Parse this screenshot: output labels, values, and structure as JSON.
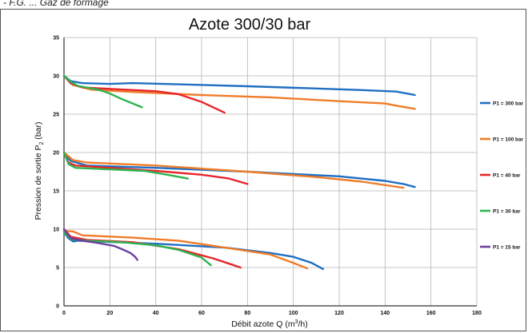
{
  "caption": "- F.G. ... Gaz de formage",
  "chart_data": {
    "type": "line",
    "title": "Azote 300/30 bar",
    "xlabel_main": "Débit azote Q (m",
    "xlabel_sup": "3",
    "xlabel_end": "/h)",
    "ylabel_main": "Pression de sortie P",
    "ylabel_sub": "2",
    "ylabel_end": " (bar)",
    "xlim": [
      0,
      180
    ],
    "ylim": [
      0,
      35
    ],
    "xticks": [
      0,
      20,
      40,
      60,
      80,
      100,
      120,
      140,
      160,
      180
    ],
    "yticks": [
      0,
      5,
      10,
      15,
      20,
      25,
      30,
      35
    ],
    "grid": true,
    "legend_position": "right",
    "series": [
      {
        "name": "P1 = 300 bar",
        "color": "#1f6fc2",
        "lines": [
          [
            [
              0,
              30.0
            ],
            [
              3,
              29.3
            ],
            [
              8,
              29.05
            ],
            [
              20,
              28.95
            ],
            [
              30,
              29.05
            ],
            [
              50,
              28.9
            ],
            [
              80,
              28.65
            ],
            [
              110,
              28.35
            ],
            [
              130,
              28.15
            ],
            [
              145,
              27.95
            ],
            [
              153,
              27.5
            ]
          ],
          [
            [
              0,
              20.0
            ],
            [
              3,
              18.9
            ],
            [
              10,
              18.3
            ],
            [
              40,
              18.0
            ],
            [
              80,
              17.5
            ],
            [
              120,
              16.9
            ],
            [
              140,
              16.3
            ],
            [
              148,
              15.9
            ],
            [
              153,
              15.5
            ]
          ],
          [
            [
              0,
              9.6
            ],
            [
              2,
              8.8
            ],
            [
              4,
              8.4
            ],
            [
              6,
              8.5
            ],
            [
              15,
              8.4
            ],
            [
              40,
              8.1
            ],
            [
              70,
              7.6
            ],
            [
              90,
              6.9
            ],
            [
              100,
              6.4
            ],
            [
              108,
              5.6
            ],
            [
              113,
              4.8
            ]
          ]
        ]
      },
      {
        "name": "P1 = 100 bar",
        "color": "#f07c28",
        "lines": [
          [
            [
              0,
              30.0
            ],
            [
              4,
              28.8
            ],
            [
              12,
              28.2
            ],
            [
              30,
              27.9
            ],
            [
              60,
              27.5
            ],
            [
              90,
              27.2
            ],
            [
              120,
              26.7
            ],
            [
              140,
              26.4
            ],
            [
              147,
              26.0
            ],
            [
              153,
              25.7
            ]
          ],
          [
            [
              0,
              20.0
            ],
            [
              4,
              19.0
            ],
            [
              10,
              18.7
            ],
            [
              40,
              18.3
            ],
            [
              80,
              17.5
            ],
            [
              110,
              16.8
            ],
            [
              130,
              16.2
            ],
            [
              148,
              15.4
            ]
          ],
          [
            [
              0,
              9.8
            ],
            [
              4,
              9.7
            ],
            [
              8,
              9.2
            ],
            [
              30,
              8.9
            ],
            [
              50,
              8.5
            ],
            [
              70,
              7.6
            ],
            [
              90,
              6.7
            ],
            [
              100,
              5.6
            ],
            [
              106,
              4.9
            ]
          ]
        ]
      },
      {
        "name": "P1 = 40 bar",
        "color": "#e5262b",
        "lines": [
          [
            [
              0,
              30.0
            ],
            [
              3,
              29.0
            ],
            [
              8,
              28.5
            ],
            [
              20,
              28.3
            ],
            [
              40,
              28.0
            ],
            [
              50,
              27.6
            ],
            [
              60,
              26.6
            ],
            [
              70,
              25.2
            ]
          ],
          [
            [
              0,
              20.0
            ],
            [
              2,
              18.7
            ],
            [
              5,
              18.3
            ],
            [
              20,
              18.0
            ],
            [
              40,
              17.6
            ],
            [
              60,
              17.1
            ],
            [
              72,
              16.6
            ],
            [
              80,
              15.9
            ]
          ],
          [
            [
              0,
              10.0
            ],
            [
              3,
              9.0
            ],
            [
              10,
              8.6
            ],
            [
              30,
              8.3
            ],
            [
              50,
              7.4
            ],
            [
              65,
              6.2
            ],
            [
              72,
              5.5
            ],
            [
              77,
              5.0
            ]
          ]
        ]
      },
      {
        "name": "P1 = 30 bar",
        "color": "#2db450",
        "lines": [
          [
            [
              0,
              30.0
            ],
            [
              3,
              29.2
            ],
            [
              6,
              28.7
            ],
            [
              15,
              28.2
            ],
            [
              20,
              27.7
            ],
            [
              25,
              27.0
            ],
            [
              30,
              26.4
            ],
            [
              34,
              25.9
            ]
          ],
          [
            [
              0,
              20.0
            ],
            [
              2,
              18.5
            ],
            [
              5,
              18.0
            ],
            [
              20,
              17.8
            ],
            [
              35,
              17.6
            ],
            [
              45,
              17.1
            ],
            [
              54,
              16.6
            ]
          ],
          [
            [
              0,
              9.6
            ],
            [
              3,
              8.7
            ],
            [
              10,
              8.5
            ],
            [
              25,
              8.3
            ],
            [
              40,
              7.9
            ],
            [
              50,
              7.3
            ],
            [
              60,
              6.3
            ],
            [
              64,
              5.3
            ]
          ]
        ]
      },
      {
        "name": "P1 = 15 bar",
        "color": "#6b3fa0",
        "lines": [
          [
            [
              0,
              10.0
            ],
            [
              3,
              8.8
            ],
            [
              8,
              8.5
            ],
            [
              15,
              8.2
            ],
            [
              22,
              7.8
            ],
            [
              26,
              7.3
            ],
            [
              29,
              6.9
            ],
            [
              31,
              6.4
            ],
            [
              32,
              6.0
            ]
          ]
        ]
      }
    ]
  }
}
